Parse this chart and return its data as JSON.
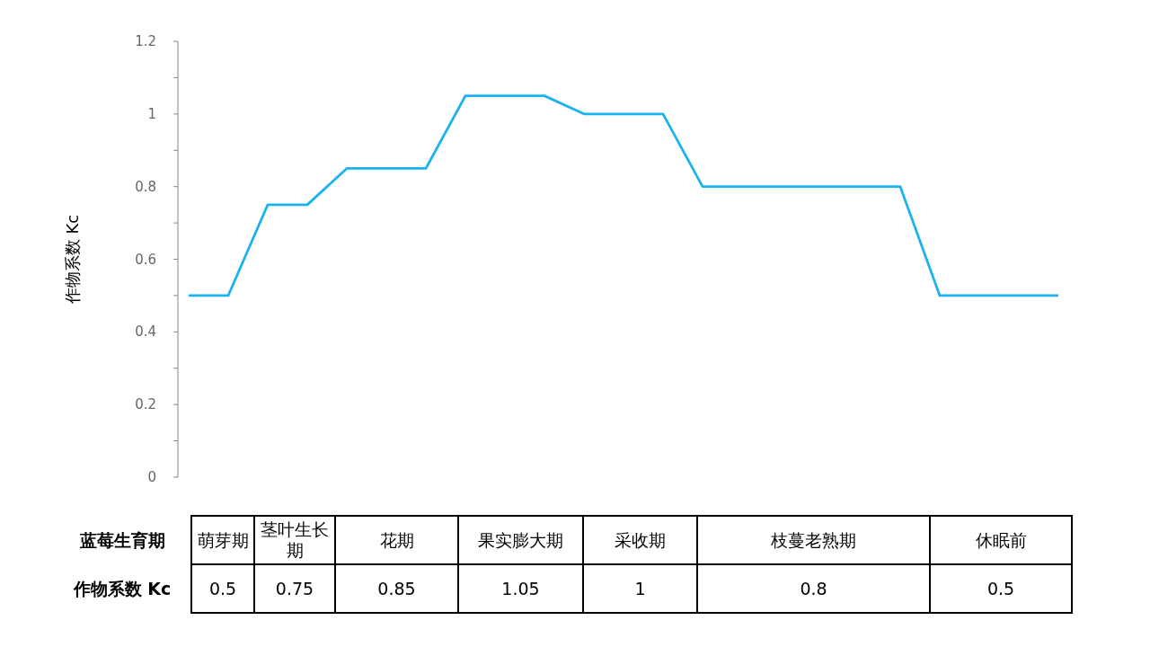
{
  "chart_data": [
    {
      "type": "line",
      "ylabel": "作物系数 Kc",
      "categories": [
        null,
        null,
        null,
        null,
        null,
        null,
        null,
        null,
        null,
        null,
        null,
        null,
        null,
        null,
        null,
        null,
        null,
        null,
        null,
        null,
        null,
        null,
        null
      ],
      "series": [
        {
          "color": "#1ab2f0",
          "values": [
            0.5,
            0.5,
            0.75,
            0.75,
            0.85,
            0.85,
            0.85,
            1.05,
            1.05,
            1.05,
            1.0,
            1.0,
            1.0,
            0.8,
            0.8,
            0.8,
            0.8,
            0.8,
            0.8,
            0.5,
            0.5,
            0.5,
            0.5
          ]
        }
      ],
      "ylim": [
        0,
        1.2
      ],
      "yticks": [
        0,
        {
          "value": 0.1,
          "label": null
        },
        0.2,
        {
          "value": 0.3,
          "label": null
        },
        0.4,
        {
          "value": 0.5,
          "label": null
        },
        0.6,
        {
          "value": 0.7,
          "label": null
        },
        0.8,
        {
          "value": 0.9,
          "label": null
        },
        1,
        {
          "value": 1.1,
          "label": null
        },
        1.2
      ],
      "grid": false,
      "marker": "none",
      "line_style": "solid"
    },
    {
      "type": "other",
      "categories": [
        "萌芽期",
        "茎叶生长期",
        "花期",
        "果实膨大期",
        "采收期",
        "枝蔓老熟期",
        "休眠前"
      ],
      "values": [
        0.5,
        0.75,
        0.85,
        1.05,
        1,
        0.8,
        0.5
      ],
      "data_labels": true,
      "annotations": [
        "蓝莓生育期",
        "作物系数 Kc"
      ]
    }
  ]
}
